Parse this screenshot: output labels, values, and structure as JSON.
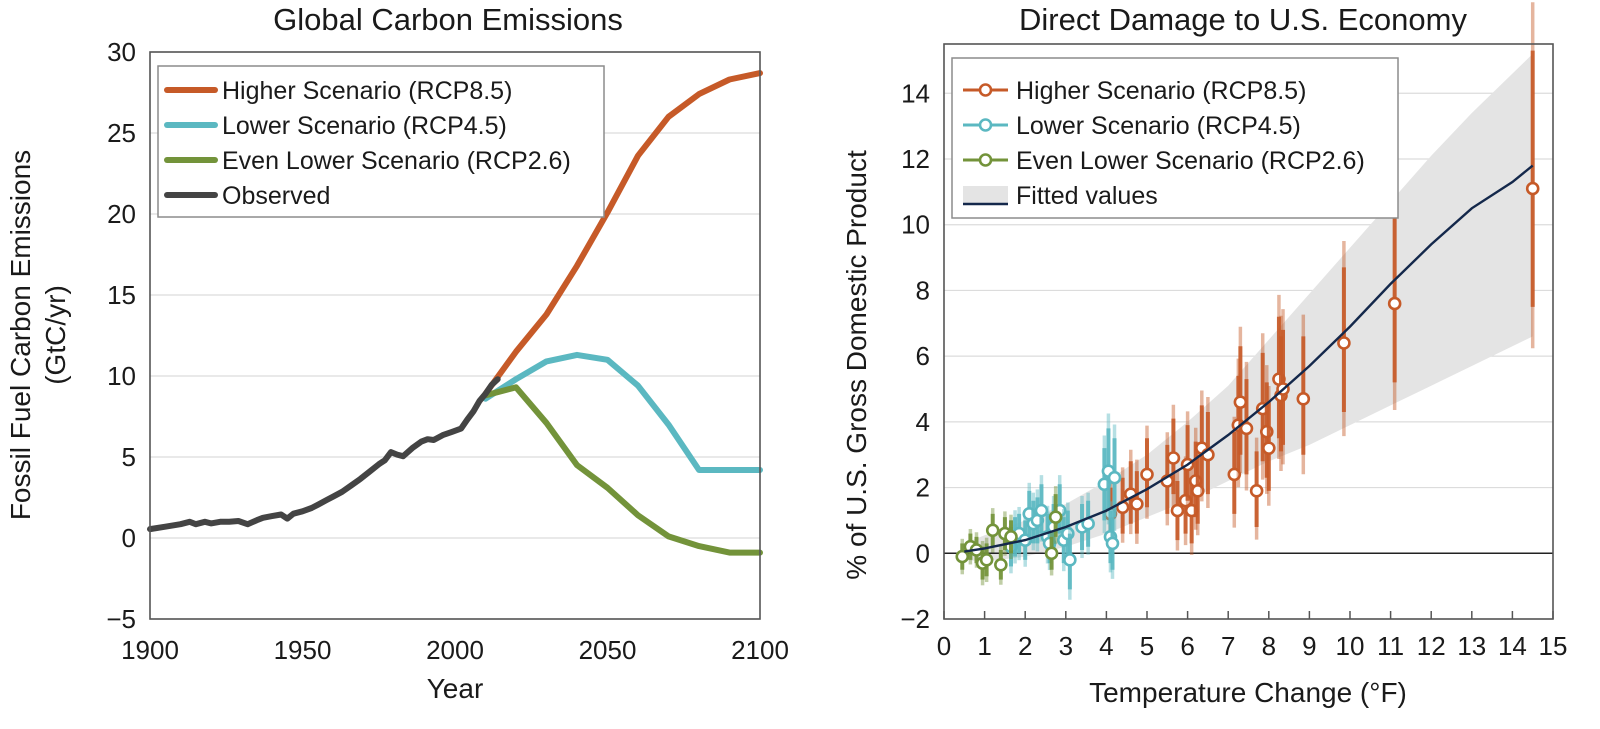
{
  "colors": {
    "rcp85": "#c65a28",
    "rcp45": "#5bb8c1",
    "rcp26": "#73933a",
    "observed": "#444444",
    "fit": "#14284b",
    "band": "#e4e4e4",
    "zero": "#222222"
  },
  "chart_data": [
    {
      "type": "line",
      "title": "Global Carbon Emissions",
      "xlabel": "Year",
      "ylabel": "Fossil Fuel Carbon Emissions",
      "ylabel_units": "(GtC/yr)",
      "xlim": [
        1900,
        2100
      ],
      "ylim": [
        -5,
        30
      ],
      "xticks": [
        1900,
        1950,
        2000,
        2050,
        2100
      ],
      "xtick_labels": [
        "1900",
        "1950",
        "2000",
        "2050",
        "2100"
      ],
      "yticks": [
        -5,
        0,
        5,
        10,
        15,
        20,
        25,
        30
      ],
      "ytick_labels": [
        "−5",
        "0",
        "5",
        "10",
        "15",
        "20",
        "25",
        "30"
      ],
      "grid": true,
      "legend_position": "top-left",
      "series": [
        {
          "name": "Higher Scenario (RCP8.5)",
          "color_key": "rcp85",
          "x": [
            2010,
            2020,
            2030,
            2040,
            2050,
            2060,
            2070,
            2080,
            2090,
            2100
          ],
          "y": [
            8.9,
            11.5,
            13.8,
            16.8,
            20.1,
            23.6,
            26.0,
            27.4,
            28.3,
            28.7
          ]
        },
        {
          "name": "Lower Scenario (RCP4.5)",
          "color_key": "rcp45",
          "x": [
            2010,
            2020,
            2030,
            2040,
            2050,
            2060,
            2070,
            2080,
            2090,
            2100
          ],
          "y": [
            8.6,
            9.8,
            10.9,
            11.3,
            11.0,
            9.4,
            7.0,
            4.2,
            4.2,
            4.2
          ]
        },
        {
          "name": "Even Lower Scenario (RCP2.6)",
          "color_key": "rcp26",
          "x": [
            2010,
            2020,
            2030,
            2040,
            2050,
            2060,
            2070,
            2080,
            2090,
            2100
          ],
          "y": [
            8.8,
            9.3,
            7.1,
            4.5,
            3.1,
            1.4,
            0.1,
            -0.5,
            -0.9,
            -0.9
          ]
        },
        {
          "name": "Observed",
          "color_key": "observed",
          "x": [
            1900,
            1905,
            1910,
            1913,
            1915,
            1918,
            1920,
            1923,
            1926,
            1929,
            1932,
            1935,
            1937,
            1940,
            1943,
            1945,
            1947,
            1950,
            1953,
            1955,
            1958,
            1960,
            1963,
            1966,
            1969,
            1972,
            1975,
            1977,
            1979,
            1981,
            1983,
            1986,
            1989,
            1991,
            1993,
            1996,
            1999,
            2002,
            2004,
            2006,
            2008,
            2010,
            2012,
            2014
          ],
          "y": [
            0.55,
            0.7,
            0.85,
            1.0,
            0.85,
            1.0,
            0.9,
            1.0,
            1.0,
            1.05,
            0.85,
            1.1,
            1.25,
            1.35,
            1.45,
            1.2,
            1.5,
            1.65,
            1.85,
            2.05,
            2.35,
            2.55,
            2.85,
            3.25,
            3.65,
            4.1,
            4.55,
            4.8,
            5.3,
            5.15,
            5.05,
            5.55,
            5.95,
            6.1,
            6.05,
            6.35,
            6.55,
            6.75,
            7.3,
            7.8,
            8.45,
            8.9,
            9.45,
            9.8
          ]
        }
      ]
    },
    {
      "type": "scatter",
      "title": "Direct Damage to U.S. Economy",
      "xlabel": "Temperature Change (°F)",
      "ylabel": "% of U.S. Gross Domestic Product",
      "xlim": [
        0,
        15
      ],
      "ylim": [
        -2,
        15.5
      ],
      "xticks": [
        0,
        1,
        2,
        3,
        4,
        5,
        6,
        7,
        8,
        9,
        10,
        11,
        12,
        13,
        14,
        15
      ],
      "xtick_labels": [
        "0",
        "1",
        "2",
        "3",
        "4",
        "5",
        "6",
        "7",
        "8",
        "9",
        "10",
        "11",
        "12",
        "13",
        "14",
        "15"
      ],
      "yticks": [
        -2,
        0,
        2,
        4,
        6,
        8,
        10,
        12,
        14
      ],
      "ytick_labels": [
        "−2",
        "0",
        "2",
        "4",
        "6",
        "8",
        "10",
        "12",
        "14"
      ],
      "grid": true,
      "legend_position": "top-left",
      "fitted_values": {
        "name": "Fitted values",
        "x": [
          0.5,
          1,
          2,
          3,
          4,
          5,
          6,
          7,
          8,
          9,
          10,
          11,
          12,
          13,
          14,
          14.5
        ],
        "y": [
          0.05,
          0.15,
          0.4,
          0.8,
          1.3,
          1.95,
          2.7,
          3.6,
          4.6,
          5.7,
          6.9,
          8.2,
          9.4,
          10.5,
          11.3,
          11.8
        ],
        "band_low": [
          -0.2,
          -0.25,
          -0.1,
          0.2,
          0.6,
          1.1,
          1.6,
          2.2,
          2.8,
          3.3,
          3.9,
          4.5,
          5.1,
          5.7,
          6.3,
          6.6
        ],
        "band_high": [
          0.3,
          0.55,
          1.0,
          1.5,
          2.2,
          3.0,
          4.0,
          5.1,
          6.5,
          7.9,
          9.3,
          10.7,
          12.1,
          13.4,
          14.6,
          15.2
        ]
      },
      "series": [
        {
          "name": "Higher Scenario (RCP8.5)",
          "color_key": "rcp85",
          "points": [
            {
              "x": 4.1,
              "y": 1.2,
              "lo": 0.4,
              "hi": 2.0
            },
            {
              "x": 4.4,
              "y": 1.4,
              "lo": 0.6,
              "hi": 2.3
            },
            {
              "x": 4.6,
              "y": 1.8,
              "lo": 0.9,
              "hi": 2.8
            },
            {
              "x": 4.75,
              "y": 1.5,
              "lo": 0.6,
              "hi": 2.5
            },
            {
              "x": 5.0,
              "y": 2.4,
              "lo": 1.4,
              "hi": 3.5
            },
            {
              "x": 5.5,
              "y": 2.2,
              "lo": 1.2,
              "hi": 3.3
            },
            {
              "x": 5.65,
              "y": 2.9,
              "lo": 1.8,
              "hi": 4.1
            },
            {
              "x": 5.75,
              "y": 1.3,
              "lo": 0.4,
              "hi": 2.2
            },
            {
              "x": 5.95,
              "y": 1.6,
              "lo": 0.6,
              "hi": 2.6
            },
            {
              "x": 6.0,
              "y": 2.7,
              "lo": 1.6,
              "hi": 3.9
            },
            {
              "x": 6.1,
              "y": 1.3,
              "lo": 0.3,
              "hi": 2.3
            },
            {
              "x": 6.2,
              "y": 2.2,
              "lo": 1.1,
              "hi": 3.4
            },
            {
              "x": 6.25,
              "y": 1.9,
              "lo": 0.9,
              "hi": 3.0
            },
            {
              "x": 6.35,
              "y": 3.2,
              "lo": 2.0,
              "hi": 4.5
            },
            {
              "x": 6.5,
              "y": 3.0,
              "lo": 1.8,
              "hi": 4.3
            },
            {
              "x": 7.15,
              "y": 2.4,
              "lo": 1.2,
              "hi": 3.7
            },
            {
              "x": 7.25,
              "y": 3.9,
              "lo": 2.5,
              "hi": 5.4
            },
            {
              "x": 7.3,
              "y": 4.6,
              "lo": 3.0,
              "hi": 6.3
            },
            {
              "x": 7.45,
              "y": 3.8,
              "lo": 2.4,
              "hi": 5.3
            },
            {
              "x": 7.7,
              "y": 1.9,
              "lo": 0.8,
              "hi": 3.1
            },
            {
              "x": 7.85,
              "y": 4.4,
              "lo": 2.8,
              "hi": 6.1
            },
            {
              "x": 7.95,
              "y": 3.7,
              "lo": 2.3,
              "hi": 5.2
            },
            {
              "x": 8.0,
              "y": 3.2,
              "lo": 1.9,
              "hi": 4.6
            },
            {
              "x": 8.25,
              "y": 5.3,
              "lo": 3.5,
              "hi": 7.2
            },
            {
              "x": 8.3,
              "y": 4.8,
              "lo": 3.1,
              "hi": 6.6
            },
            {
              "x": 8.35,
              "y": 5.0,
              "lo": 3.3,
              "hi": 6.8
            },
            {
              "x": 8.85,
              "y": 4.7,
              "lo": 3.0,
              "hi": 6.6
            },
            {
              "x": 9.85,
              "y": 6.4,
              "lo": 4.3,
              "hi": 8.7
            },
            {
              "x": 11.1,
              "y": 7.6,
              "lo": 5.2,
              "hi": 10.4
            },
            {
              "x": 14.5,
              "y": 11.1,
              "lo": 7.5,
              "hi": 15.3
            }
          ]
        },
        {
          "name": "Lower Scenario (RCP4.5)",
          "color_key": "rcp45",
          "points": [
            {
              "x": 1.65,
              "y": 0.2,
              "lo": -0.4,
              "hi": 0.8
            },
            {
              "x": 1.75,
              "y": 0.5,
              "lo": -0.1,
              "hi": 1.1
            },
            {
              "x": 1.85,
              "y": 0.6,
              "lo": 0.0,
              "hi": 1.2
            },
            {
              "x": 2.0,
              "y": 0.4,
              "lo": -0.2,
              "hi": 1.0
            },
            {
              "x": 2.1,
              "y": 1.2,
              "lo": 0.5,
              "hi": 1.9
            },
            {
              "x": 2.2,
              "y": 0.9,
              "lo": 0.3,
              "hi": 1.6
            },
            {
              "x": 2.3,
              "y": 1.0,
              "lo": 0.3,
              "hi": 1.7
            },
            {
              "x": 2.4,
              "y": 1.3,
              "lo": 0.6,
              "hi": 2.1
            },
            {
              "x": 2.55,
              "y": 0.5,
              "lo": -0.1,
              "hi": 1.2
            },
            {
              "x": 2.6,
              "y": 0.3,
              "lo": -0.3,
              "hi": 1.0
            },
            {
              "x": 2.7,
              "y": 0.8,
              "lo": 0.1,
              "hi": 1.5
            },
            {
              "x": 2.85,
              "y": 1.3,
              "lo": 0.6,
              "hi": 2.1
            },
            {
              "x": 2.95,
              "y": 0.4,
              "lo": -0.3,
              "hi": 1.1
            },
            {
              "x": 3.05,
              "y": 0.6,
              "lo": -0.1,
              "hi": 1.3
            },
            {
              "x": 3.1,
              "y": -0.2,
              "lo": -1.1,
              "hi": 0.6
            },
            {
              "x": 3.4,
              "y": 0.8,
              "lo": 0.1,
              "hi": 1.5
            },
            {
              "x": 3.55,
              "y": 0.9,
              "lo": 0.2,
              "hi": 1.6
            },
            {
              "x": 3.95,
              "y": 2.1,
              "lo": 1.0,
              "hi": 3.2
            },
            {
              "x": 4.05,
              "y": 2.5,
              "lo": 1.3,
              "hi": 3.8
            },
            {
              "x": 4.1,
              "y": 0.5,
              "lo": -0.3,
              "hi": 1.3
            },
            {
              "x": 4.15,
              "y": 0.3,
              "lo": -0.5,
              "hi": 1.1
            },
            {
              "x": 4.2,
              "y": 2.3,
              "lo": 1.1,
              "hi": 3.5
            }
          ]
        },
        {
          "name": "Even Lower Scenario (RCP2.6)",
          "color_key": "rcp26",
          "points": [
            {
              "x": 0.45,
              "y": -0.1,
              "lo": -0.5,
              "hi": 0.3
            },
            {
              "x": 0.65,
              "y": 0.2,
              "lo": -0.2,
              "hi": 0.6
            },
            {
              "x": 0.8,
              "y": 0.1,
              "lo": -0.3,
              "hi": 0.5
            },
            {
              "x": 0.95,
              "y": -0.3,
              "lo": -0.8,
              "hi": 0.2
            },
            {
              "x": 1.05,
              "y": -0.2,
              "lo": -0.7,
              "hi": 0.3
            },
            {
              "x": 1.2,
              "y": 0.7,
              "lo": 0.2,
              "hi": 1.2
            },
            {
              "x": 1.4,
              "y": -0.35,
              "lo": -0.8,
              "hi": 0.1
            },
            {
              "x": 1.5,
              "y": 0.6,
              "lo": 0.1,
              "hi": 1.1
            },
            {
              "x": 1.65,
              "y": 0.5,
              "lo": 0.0,
              "hi": 1.0
            },
            {
              "x": 2.65,
              "y": 0.0,
              "lo": -0.5,
              "hi": 0.5
            },
            {
              "x": 2.75,
              "y": 1.1,
              "lo": 0.5,
              "hi": 1.8
            }
          ]
        }
      ]
    }
  ]
}
